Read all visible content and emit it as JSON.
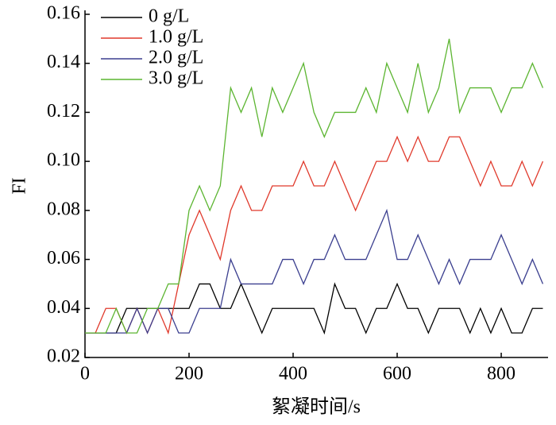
{
  "chart_data": {
    "type": "line",
    "x_label": "絮凝时间/s",
    "y_label": "FI",
    "x": [
      0,
      20,
      40,
      60,
      80,
      100,
      120,
      140,
      160,
      180,
      200,
      220,
      240,
      260,
      280,
      300,
      320,
      340,
      360,
      380,
      400,
      420,
      440,
      460,
      480,
      500,
      520,
      540,
      560,
      580,
      600,
      620,
      640,
      660,
      680,
      700,
      720,
      740,
      760,
      780,
      800,
      820,
      840,
      860,
      880
    ],
    "series": [
      {
        "name": "0 g/L",
        "color": "#000000",
        "values": [
          0.03,
          0.03,
          0.03,
          0.03,
          0.04,
          0.04,
          0.04,
          0.04,
          0.04,
          0.04,
          0.04,
          0.05,
          0.05,
          0.04,
          0.04,
          0.05,
          0.04,
          0.03,
          0.04,
          0.04,
          0.04,
          0.04,
          0.04,
          0.03,
          0.05,
          0.04,
          0.04,
          0.03,
          0.04,
          0.04,
          0.05,
          0.04,
          0.04,
          0.03,
          0.04,
          0.04,
          0.04,
          0.03,
          0.04,
          0.03,
          0.04,
          0.03,
          0.03,
          0.04,
          0.04
        ]
      },
      {
        "name": "1.0 g/L",
        "color": "#e0392b",
        "values": [
          0.03,
          0.03,
          0.04,
          0.04,
          0.03,
          0.04,
          0.03,
          0.04,
          0.03,
          0.05,
          0.07,
          0.08,
          0.07,
          0.06,
          0.08,
          0.09,
          0.08,
          0.08,
          0.09,
          0.09,
          0.09,
          0.1,
          0.09,
          0.09,
          0.1,
          0.09,
          0.08,
          0.09,
          0.1,
          0.1,
          0.11,
          0.1,
          0.11,
          0.1,
          0.1,
          0.11,
          0.11,
          0.1,
          0.09,
          0.1,
          0.09,
          0.09,
          0.1,
          0.09,
          0.1
        ]
      },
      {
        "name": "2.0 g/L",
        "color": "#3b3f8f",
        "values": [
          0.03,
          0.03,
          0.03,
          0.03,
          0.03,
          0.04,
          0.03,
          0.04,
          0.04,
          0.03,
          0.03,
          0.04,
          0.04,
          0.04,
          0.06,
          0.05,
          0.05,
          0.05,
          0.05,
          0.06,
          0.06,
          0.05,
          0.06,
          0.06,
          0.07,
          0.06,
          0.06,
          0.06,
          0.07,
          0.08,
          0.06,
          0.06,
          0.07,
          0.06,
          0.05,
          0.06,
          0.05,
          0.06,
          0.06,
          0.06,
          0.07,
          0.06,
          0.05,
          0.06,
          0.05
        ]
      },
      {
        "name": "3.0 g/L",
        "color": "#5cb531",
        "values": [
          0.03,
          0.03,
          0.03,
          0.04,
          0.03,
          0.03,
          0.04,
          0.04,
          0.05,
          0.05,
          0.08,
          0.09,
          0.08,
          0.09,
          0.13,
          0.12,
          0.13,
          0.11,
          0.13,
          0.12,
          0.13,
          0.14,
          0.12,
          0.11,
          0.12,
          0.12,
          0.12,
          0.13,
          0.12,
          0.14,
          0.13,
          0.12,
          0.14,
          0.12,
          0.13,
          0.15,
          0.12,
          0.13,
          0.13,
          0.13,
          0.12,
          0.13,
          0.13,
          0.14,
          0.13
        ]
      }
    ],
    "xlim": [
      0,
      890
    ],
    "ylim": [
      0.02,
      0.16
    ],
    "xticks": [
      0,
      200,
      400,
      600,
      800
    ],
    "yticks": [
      0.02,
      0.04,
      0.06,
      0.08,
      {
        "value": 0.1,
        "label": "0.10"
      },
      0.12,
      0.14,
      0.16
    ],
    "legend": "upper left",
    "grid": false
  }
}
